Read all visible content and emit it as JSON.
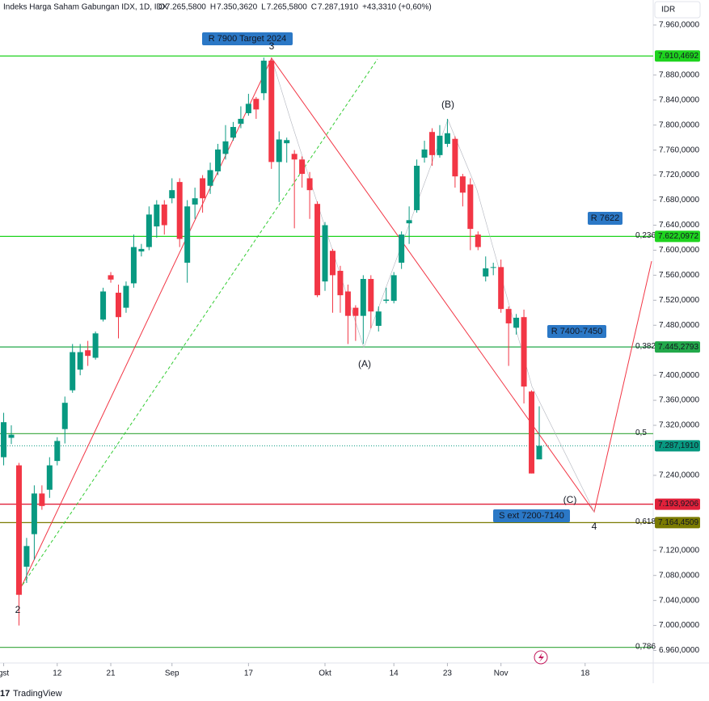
{
  "header": {
    "symbol": "Indeks Harga Saham Gabungan IDX, 1D, IDX",
    "ohlc": [
      {
        "key": "O",
        "value": "7.265,5800"
      },
      {
        "key": "H",
        "value": "7.350,3620"
      },
      {
        "key": "L",
        "value": "7.265,5800"
      },
      {
        "key": "C",
        "value": "7.287,1910"
      }
    ],
    "change": "+43,3310 (+0,60%)",
    "currency": "IDR",
    "brand": "TradingView"
  },
  "chart_data": {
    "type": "candlestick",
    "up_color": "#089981",
    "down_color": "#f23645",
    "open": [
      7269,
      7300,
      7256,
      7094,
      7146,
      7211,
      7217,
      7263,
      7314,
      7376,
      7409,
      7440,
      7428,
      7489,
      7560,
      7532,
      7508,
      7547,
      7598,
      7605,
      7638,
      7673,
      7683,
      7709,
      7580,
      7673,
      7715,
      7703,
      7726,
      7754,
      7780,
      7802,
      7819,
      7842,
      7851,
      7903,
      7741,
      7771,
      7754,
      7745,
      7715,
      7674,
      7550,
      7599,
      7567,
      7534,
      7508,
      7495,
      7554,
      7479,
      7519,
      7519,
      7580,
      7643,
      7664,
      7748,
      7789,
      7752,
      7770,
      7778,
      7718,
      7705,
      7625,
      7558,
      7573,
      7573,
      7506,
      7476,
      7493,
      7374,
      7265.58
    ],
    "high": [
      7340,
      7320,
      7260,
      7140,
      7224,
      7224,
      7269,
      7301,
      7366,
      7450,
      7450,
      7455,
      7470,
      7540,
      7565,
      7545,
      7550,
      7625,
      7610,
      7670,
      7680,
      7680,
      7715,
      7715,
      7680,
      7700,
      7720,
      7740,
      7770,
      7800,
      7805,
      7830,
      7850,
      7845,
      7908,
      7908,
      7790,
      7780,
      7760,
      7750,
      7725,
      7678,
      7645,
      7602,
      7575,
      7545,
      7512,
      7560,
      7560,
      7510,
      7540,
      7565,
      7630,
      7670,
      7745,
      7775,
      7795,
      7800,
      7810,
      7782,
      7722,
      7715,
      7630,
      7590,
      7580,
      7585,
      7510,
      7498,
      7505,
      7376,
      7350.362
    ],
    "low": [
      7256,
      7290,
      7000,
      7068,
      7105,
      7185,
      7204,
      7256,
      7291,
      7372,
      7400,
      7415,
      7425,
      7486,
      7548,
      7459,
      7500,
      7540,
      7590,
      7600,
      7620,
      7625,
      7675,
      7605,
      7548,
      7650,
      7660,
      7690,
      7720,
      7745,
      7775,
      7795,
      7815,
      7810,
      7840,
      7730,
      7677,
      7740,
      7635,
      7700,
      7650,
      7525,
      7535,
      7500,
      7500,
      7450,
      7455,
      7450,
      7475,
      7470,
      7515,
      7515,
      7570,
      7610,
      7660,
      7740,
      7735,
      7748,
      7765,
      7700,
      7670,
      7600,
      7600,
      7550,
      7560,
      7500,
      7415,
      7465,
      7355,
      7243,
      7265.58
    ],
    "close": [
      7325,
      7305,
      7049,
      7127,
      7211,
      7191,
      7256,
      7295,
      7356,
      7437,
      7437,
      7431,
      7467,
      7534,
      7553,
      7493,
      7543,
      7605,
      7602,
      7657,
      7673,
      7640,
      7696,
      7618,
      7670,
      7683,
      7683,
      7728,
      7761,
      7774,
      7797,
      7810,
      7834,
      7825,
      7903,
      7741,
      7777,
      7776,
      7745,
      7722,
      7696,
      7528,
      7640,
      7560,
      7528,
      7495,
      7495,
      7554,
      7502,
      7502,
      7521,
      7560,
      7625,
      7648,
      7735,
      7761,
      7752,
      7783,
      7787,
      7718,
      7692,
      7634,
      7605,
      7571,
      7573,
      7506,
      7483,
      7492,
      7382,
      7243,
      7287.191
    ],
    "ylim": [
      6940,
      8000
    ],
    "xlim": [
      -0.48,
      84.9
    ],
    "yticks": [
      {
        "value": 7960,
        "label": "7.960,0000"
      },
      {
        "value": 7880,
        "label": "7.880,0000"
      },
      {
        "value": 7840,
        "label": "7.840,0000"
      },
      {
        "value": 7800,
        "label": "7.800,0000"
      },
      {
        "value": 7760,
        "label": "7.760,0000"
      },
      {
        "value": 7720,
        "label": "7.720,0000"
      },
      {
        "value": 7680,
        "label": "7.680,0000"
      },
      {
        "value": 7640,
        "label": "7.640,0000"
      },
      {
        "value": 7600,
        "label": "7.600,0000"
      },
      {
        "value": 7560,
        "label": "7.560,0000"
      },
      {
        "value": 7520,
        "label": "7.520,0000"
      },
      {
        "value": 7480,
        "label": "7.480,0000"
      },
      {
        "value": 7400,
        "label": "7.400,0000"
      },
      {
        "value": 7360,
        "label": "7.360,0000"
      },
      {
        "value": 7320,
        "label": "7.320,0000"
      },
      {
        "value": 7240,
        "label": "7.240,0000"
      },
      {
        "value": 7120,
        "label": "7.120,0000"
      },
      {
        "value": 7080,
        "label": "7.080,0000"
      },
      {
        "value": 7040,
        "label": "7.040,0000"
      },
      {
        "value": 7000,
        "label": "7.000,0000"
      },
      {
        "value": 6960,
        "label": "6.960,0000"
      }
    ],
    "xticks": [
      {
        "value": 0,
        "label": "gst"
      },
      {
        "value": 7,
        "label": "12"
      },
      {
        "value": 14,
        "label": "21"
      },
      {
        "value": 22,
        "label": "Sep"
      },
      {
        "value": 32,
        "label": "17"
      },
      {
        "value": 42,
        "label": "Okt"
      },
      {
        "value": 51,
        "label": "14"
      },
      {
        "value": 58,
        "label": "23"
      },
      {
        "value": 65,
        "label": "Nov"
      },
      {
        "value": 76,
        "label": "18"
      }
    ],
    "levels": [
      {
        "value": 7910.4692,
        "label": "7.910,4692",
        "color": "#1ed31e"
      },
      {
        "value": 7622.0972,
        "label": "7.622,0972",
        "color": "#1ed31e",
        "fib": "0,236"
      },
      {
        "value": 7445.2793,
        "label": "7.445,2793",
        "color": "#22a84a",
        "fib": "0,382"
      },
      {
        "value": 7306.6,
        "color": "#4caf50",
        "fib": "0,5"
      },
      {
        "value": 7287.191,
        "label": "7.287,1910",
        "color": "#089981",
        "dotted": true
      },
      {
        "value": 7193.9206,
        "label": "7.193,9206",
        "color": "#e0213a"
      },
      {
        "value": 7164.4509,
        "label": "7.164,4509",
        "color": "#7a7a00",
        "fib": "0,618"
      },
      {
        "value": 6965,
        "color": "#4caf50",
        "fib": "0,786"
      }
    ],
    "annotations": [
      {
        "text": "R 7900 Target 2024"
      },
      {
        "text": "R 7622"
      },
      {
        "text": "R 7400-7450"
      },
      {
        "text": "S ext 7200-7140"
      }
    ],
    "waves": [
      {
        "text": "2",
        "color": "#f23645"
      },
      {
        "text": "3",
        "color": "#f23645"
      },
      {
        "text": "4",
        "color": "#f23645"
      },
      {
        "text": "(A)",
        "color": "#b2b5be"
      },
      {
        "text": "(B)",
        "color": "#b2b5be"
      },
      {
        "text": "(C)",
        "color": "#b2b5be"
      }
    ]
  }
}
